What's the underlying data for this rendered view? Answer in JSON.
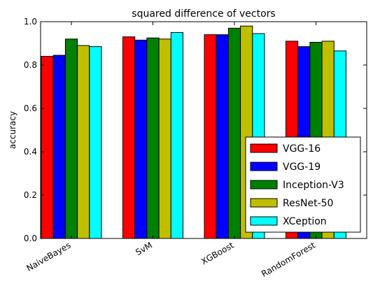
{
  "chart_data": {
    "type": "bar",
    "title": "squared difference of vectors",
    "xlabel": "",
    "ylabel": "accuracy",
    "ylim": [
      0,
      1.0
    ],
    "yticks": [
      "0.0",
      "0.2",
      "0.4",
      "0.6",
      "0.8",
      "1.0"
    ],
    "categories": [
      "NaiveBayes",
      "SvM",
      "XGBoost",
      "RandomForest"
    ],
    "series": [
      {
        "name": "VGG-16",
        "color": "#ff0000",
        "values": [
          0.84,
          0.93,
          0.94,
          0.91
        ]
      },
      {
        "name": "VGG-19",
        "color": "#0000ff",
        "values": [
          0.845,
          0.915,
          0.94,
          0.885
        ]
      },
      {
        "name": "Inception-V3",
        "color": "#008000",
        "values": [
          0.92,
          0.925,
          0.97,
          0.905
        ]
      },
      {
        "name": "ResNet-50",
        "color": "#bfbf00",
        "values": [
          0.89,
          0.92,
          0.98,
          0.91
        ]
      },
      {
        "name": "XCeption",
        "color": "#00ffff",
        "values": [
          0.885,
          0.95,
          0.945,
          0.865
        ]
      }
    ],
    "legend_position": "lower-right",
    "grid": false
  }
}
